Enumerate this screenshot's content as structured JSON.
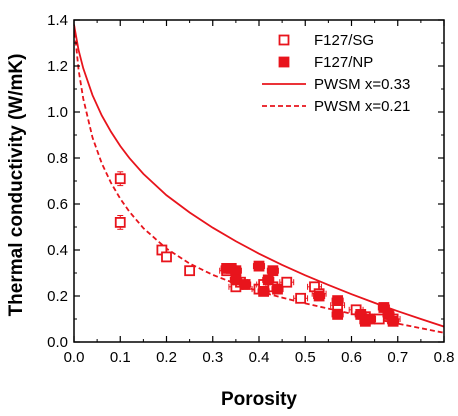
{
  "chart_data": {
    "type": "scatter",
    "title": "",
    "xlabel": "Porosity",
    "ylabel": "Thermal conductivity (W/mK)",
    "xlim": [
      0.0,
      0.8
    ],
    "ylim": [
      0.0,
      1.4
    ],
    "xticks": [
      "0.0",
      "0.1",
      "0.2",
      "0.3",
      "0.4",
      "0.5",
      "0.6",
      "0.7",
      "0.8"
    ],
    "yticks": [
      "0.0",
      "0.2",
      "0.4",
      "0.6",
      "0.8",
      "1.0",
      "1.2",
      "1.4"
    ],
    "grid": false,
    "legend_position": "top-right",
    "color": "#e8141c",
    "series": [
      {
        "name": "F127/SG",
        "kind": "scatter",
        "marker": "open-square",
        "points": [
          {
            "x": 0.1,
            "y": 0.71,
            "xerr": 0.01,
            "yerr": 0.03
          },
          {
            "x": 0.1,
            "y": 0.52,
            "xerr": 0.01,
            "yerr": 0.03
          },
          {
            "x": 0.19,
            "y": 0.4,
            "xerr": 0.01,
            "yerr": 0.02
          },
          {
            "x": 0.2,
            "y": 0.37,
            "xerr": 0.01,
            "yerr": 0.02
          },
          {
            "x": 0.25,
            "y": 0.31,
            "xerr": 0.01,
            "yerr": 0.02
          },
          {
            "x": 0.33,
            "y": 0.31,
            "xerr": 0.015,
            "yerr": 0.02
          },
          {
            "x": 0.35,
            "y": 0.24,
            "xerr": 0.015,
            "yerr": 0.02
          },
          {
            "x": 0.36,
            "y": 0.26,
            "xerr": 0.015,
            "yerr": 0.02
          },
          {
            "x": 0.4,
            "y": 0.23,
            "xerr": 0.015,
            "yerr": 0.02
          },
          {
            "x": 0.41,
            "y": 0.25,
            "xerr": 0.015,
            "yerr": 0.02
          },
          {
            "x": 0.43,
            "y": 0.24,
            "xerr": 0.015,
            "yerr": 0.02
          },
          {
            "x": 0.46,
            "y": 0.26,
            "xerr": 0.015,
            "yerr": 0.02
          },
          {
            "x": 0.49,
            "y": 0.19,
            "xerr": 0.015,
            "yerr": 0.02
          },
          {
            "x": 0.52,
            "y": 0.24,
            "xerr": 0.015,
            "yerr": 0.02
          },
          {
            "x": 0.53,
            "y": 0.21,
            "xerr": 0.015,
            "yerr": 0.02
          },
          {
            "x": 0.57,
            "y": 0.16,
            "xerr": 0.015,
            "yerr": 0.02
          },
          {
            "x": 0.61,
            "y": 0.14,
            "xerr": 0.015,
            "yerr": 0.02
          },
          {
            "x": 0.63,
            "y": 0.11,
            "xerr": 0.015,
            "yerr": 0.02
          },
          {
            "x": 0.66,
            "y": 0.1,
            "xerr": 0.015,
            "yerr": 0.02
          },
          {
            "x": 0.69,
            "y": 0.1,
            "xerr": 0.015,
            "yerr": 0.02
          }
        ]
      },
      {
        "name": "F127/NP",
        "kind": "scatter",
        "marker": "filled-square",
        "points": [
          {
            "x": 0.33,
            "y": 0.32,
            "xerr": 0.012,
            "yerr": 0.02
          },
          {
            "x": 0.34,
            "y": 0.32,
            "xerr": 0.012,
            "yerr": 0.02
          },
          {
            "x": 0.35,
            "y": 0.31,
            "xerr": 0.012,
            "yerr": 0.02
          },
          {
            "x": 0.35,
            "y": 0.27,
            "xerr": 0.012,
            "yerr": 0.02
          },
          {
            "x": 0.37,
            "y": 0.25,
            "xerr": 0.012,
            "yerr": 0.02
          },
          {
            "x": 0.4,
            "y": 0.33,
            "xerr": 0.012,
            "yerr": 0.02
          },
          {
            "x": 0.41,
            "y": 0.22,
            "xerr": 0.012,
            "yerr": 0.02
          },
          {
            "x": 0.42,
            "y": 0.27,
            "xerr": 0.012,
            "yerr": 0.02
          },
          {
            "x": 0.43,
            "y": 0.31,
            "xerr": 0.012,
            "yerr": 0.02
          },
          {
            "x": 0.44,
            "y": 0.23,
            "xerr": 0.012,
            "yerr": 0.02
          },
          {
            "x": 0.53,
            "y": 0.2,
            "xerr": 0.012,
            "yerr": 0.02
          },
          {
            "x": 0.57,
            "y": 0.18,
            "xerr": 0.012,
            "yerr": 0.02
          },
          {
            "x": 0.57,
            "y": 0.12,
            "xerr": 0.012,
            "yerr": 0.02
          },
          {
            "x": 0.62,
            "y": 0.12,
            "xerr": 0.012,
            "yerr": 0.02
          },
          {
            "x": 0.63,
            "y": 0.09,
            "xerr": 0.012,
            "yerr": 0.02
          },
          {
            "x": 0.64,
            "y": 0.1,
            "xerr": 0.012,
            "yerr": 0.02
          },
          {
            "x": 0.67,
            "y": 0.15,
            "xerr": 0.012,
            "yerr": 0.02
          },
          {
            "x": 0.68,
            "y": 0.12,
            "xerr": 0.012,
            "yerr": 0.02
          },
          {
            "x": 0.69,
            "y": 0.09,
            "xerr": 0.012,
            "yerr": 0.02
          }
        ]
      },
      {
        "name": "PWSM x=0.33",
        "kind": "line",
        "style": "solid",
        "x": [
          0.0,
          0.01,
          0.02,
          0.04,
          0.06,
          0.08,
          0.1,
          0.12,
          0.15,
          0.2,
          0.25,
          0.3,
          0.35,
          0.4,
          0.45,
          0.5,
          0.55,
          0.6,
          0.65,
          0.7,
          0.75,
          0.8
        ],
        "y": [
          1.38,
          1.268,
          1.19,
          1.073,
          0.985,
          0.914,
          0.852,
          0.799,
          0.731,
          0.638,
          0.563,
          0.497,
          0.438,
          0.384,
          0.335,
          0.29,
          0.248,
          0.208,
          0.17,
          0.134,
          0.1,
          0.067
        ]
      },
      {
        "name": "PWSM x=0.21",
        "kind": "line",
        "style": "dashed",
        "x": [
          0.0,
          0.01,
          0.02,
          0.04,
          0.06,
          0.08,
          0.1,
          0.12,
          0.15,
          0.2,
          0.25,
          0.3,
          0.35,
          0.4,
          0.45,
          0.5,
          0.55,
          0.6,
          0.65,
          0.7,
          0.75,
          0.8
        ],
        "y": [
          1.38,
          1.181,
          1.058,
          0.889,
          0.777,
          0.692,
          0.623,
          0.566,
          0.495,
          0.406,
          0.341,
          0.292,
          0.253,
          0.22,
          0.193,
          0.168,
          0.145,
          0.123,
          0.101,
          0.08,
          0.06,
          0.04
        ]
      }
    ]
  }
}
